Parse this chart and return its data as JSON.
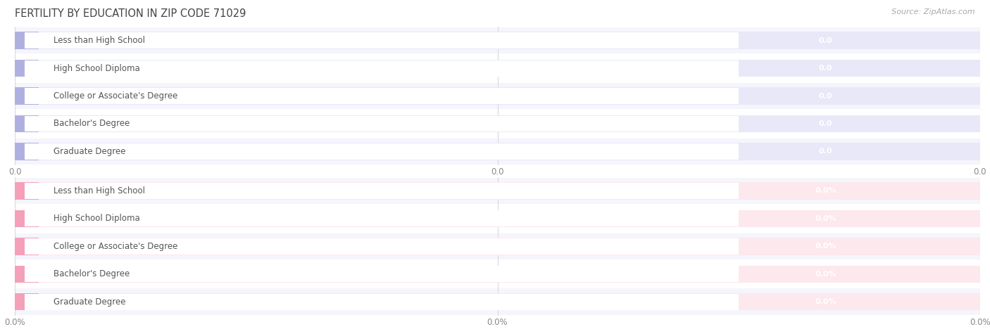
{
  "title": "FERTILITY BY EDUCATION IN ZIP CODE 71029",
  "source": "Source: ZipAtlas.com",
  "categories": [
    "Less than High School",
    "High School Diploma",
    "College or Associate's Degree",
    "Bachelor's Degree",
    "Graduate Degree"
  ],
  "top_values": [
    0.0,
    0.0,
    0.0,
    0.0,
    0.0
  ],
  "bottom_values": [
    0.0,
    0.0,
    0.0,
    0.0,
    0.0
  ],
  "top_bar_color": "#b0b0e0",
  "top_bar_bg": "#e8e8f8",
  "bottom_bar_color": "#f4a0b8",
  "bottom_bar_bg": "#fce8ed",
  "top_value_labels": [
    "0.0",
    "0.0",
    "0.0",
    "0.0",
    "0.0"
  ],
  "bottom_value_labels": [
    "0.0%",
    "0.0%",
    "0.0%",
    "0.0%",
    "0.0%"
  ],
  "top_xtick_labels": [
    "0.0",
    "0.0",
    "0.0"
  ],
  "bottom_xtick_labels": [
    "0.0%",
    "0.0%",
    "0.0%"
  ],
  "title_fontsize": 10.5,
  "label_fontsize": 8.5,
  "value_fontsize": 8.0,
  "source_fontsize": 8,
  "background_color": "#ffffff",
  "row_bg_even": "#f5f5fc",
  "row_bg_odd": "#ffffff",
  "grid_color": "#d8d8e8",
  "text_color": "#555555",
  "value_text_color": "#888888"
}
